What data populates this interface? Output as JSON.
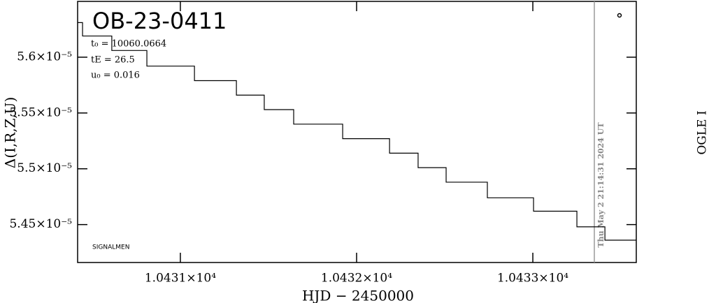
{
  "chart_data": {
    "type": "line",
    "title": "OB-23-0411",
    "params": [
      "t₀ = 10060.0664",
      "tE = 26.5",
      "u₀ = 0.016"
    ],
    "note": "SIGNALMEN",
    "timestamp": "Thu May  2 21:14:31 2024 UT",
    "right_label": "OGLE I",
    "xlabel": "HJD − 2450000",
    "ylabel": "Δ(I,R,Z,U)",
    "x": [
      10430.417,
      10430.445,
      10430.445,
      10430.611,
      10430.611,
      10430.81,
      10430.81,
      10431.08,
      10431.08,
      10431.318,
      10431.318,
      10431.476,
      10431.476,
      10431.643,
      10431.643,
      10431.921,
      10431.921,
      10432.187,
      10432.187,
      10432.349,
      10432.349,
      10432.508,
      10432.508,
      10432.742,
      10432.742,
      10433.004,
      10433.004,
      10433.25,
      10433.25,
      10433.409,
      10433.409,
      10433.587
    ],
    "series": [
      {
        "name": "Δ",
        "color": "#000000",
        "values": [
          5.631e-05,
          5.631e-05,
          5.619e-05,
          5.619e-05,
          5.606e-05,
          5.606e-05,
          5.592e-05,
          5.592e-05,
          5.579e-05,
          5.579e-05,
          5.566e-05,
          5.566e-05,
          5.553e-05,
          5.553e-05,
          5.54e-05,
          5.54e-05,
          5.527e-05,
          5.527e-05,
          5.514e-05,
          5.514e-05,
          5.501e-05,
          5.501e-05,
          5.488e-05,
          5.488e-05,
          5.474e-05,
          5.474e-05,
          5.462e-05,
          5.462e-05,
          5.448e-05,
          5.448e-05,
          5.436e-05,
          5.436e-05
        ]
      }
    ],
    "vline": 10433.349,
    "xlim": [
      10430.417,
      10433.587
    ],
    "ylim": [
      5.416e-05,
      5.65e-05
    ],
    "xticks": [
      {
        "value": 10431,
        "label": "1.0431×10⁴"
      },
      {
        "value": 10432,
        "label": "1.0432×10⁴"
      },
      {
        "value": 10433,
        "label": "1.0433×10⁴"
      }
    ],
    "yticks": [
      {
        "value": 5.45e-05,
        "label": "5.45×10⁻⁵"
      },
      {
        "value": 5.5e-05,
        "label": "5.5×10⁻⁵"
      },
      {
        "value": 5.55e-05,
        "label": "5.55×10⁻⁵"
      },
      {
        "value": 5.6e-05,
        "label": "5.6×10⁻⁵"
      }
    ]
  }
}
